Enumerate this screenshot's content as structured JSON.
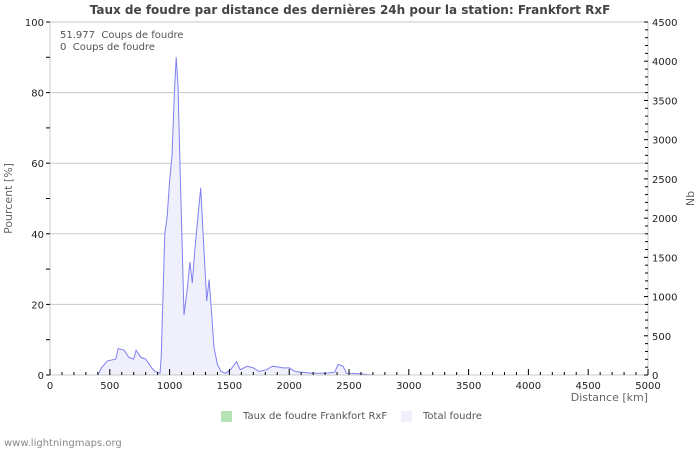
{
  "header": {
    "title": "Taux de foudre par distance des dernières 24h pour la station: Frankfort RxF"
  },
  "annotations": [
    {
      "value": "51.977",
      "label": "Coups de foudre"
    },
    {
      "value": "0",
      "label": "Coups de foudre"
    }
  ],
  "legend": [
    {
      "label": "Taux de foudre Frankfort RxF",
      "color": "#b5e3b5"
    },
    {
      "label": "Total foudre",
      "color": "#f0f0fc"
    }
  ],
  "footer": {
    "text": "www.lightningmaps.org"
  },
  "colors": {
    "line": "#8080f0",
    "fill": "#f0f0fc",
    "grid": "#c8c8c8",
    "axis": "#c8c8c8"
  },
  "chart_data": {
    "type": "area",
    "title": "Taux de foudre par distance des dernières 24h pour la station: Frankfort RxF",
    "xlabel": "Distance   [km]",
    "ylabel": "Pourcent   [%]",
    "y2label": "Nb",
    "xlim": [
      0,
      5000
    ],
    "ylim": [
      0,
      100
    ],
    "y2lim": [
      0,
      4500
    ],
    "xticks": [
      0,
      500,
      1000,
      1500,
      2000,
      2500,
      3000,
      3500,
      4000,
      4500,
      5000
    ],
    "yticks": [
      0,
      20,
      40,
      60,
      80,
      100
    ],
    "y2ticks": [
      0,
      500,
      1000,
      1500,
      2000,
      2500,
      3000,
      3500,
      4000,
      4500
    ],
    "grid": true,
    "legend_position": "bottom",
    "series": [
      {
        "name": "Total foudre",
        "x": [
          0,
          400,
          430,
          480,
          550,
          570,
          620,
          660,
          700,
          720,
          760,
          800,
          850,
          880,
          920,
          930,
          960,
          980,
          1000,
          1020,
          1040,
          1055,
          1070,
          1090,
          1110,
          1120,
          1150,
          1170,
          1190,
          1210,
          1240,
          1260,
          1280,
          1310,
          1330,
          1350,
          1370,
          1400,
          1430,
          1470,
          1510,
          1560,
          1590,
          1650,
          1700,
          1750,
          1810,
          1860,
          1900,
          1950,
          2000,
          2050,
          2100,
          2200,
          2300,
          2380,
          2410,
          2450,
          2480,
          2600,
          2700,
          5000
        ],
        "values": [
          0,
          0,
          2,
          4,
          4.5,
          7.5,
          7,
          5,
          4.5,
          7,
          5,
          4.5,
          2,
          1,
          0.5,
          5,
          40,
          45,
          55,
          62,
          80,
          90,
          82,
          55,
          30,
          17,
          25,
          32,
          26,
          35,
          46,
          53,
          40,
          21,
          27,
          18,
          8,
          3,
          1,
          0.5,
          1.5,
          3.8,
          1.5,
          2.5,
          2,
          1,
          1.5,
          2.5,
          2.3,
          2,
          2,
          1,
          0.8,
          0.5,
          0.5,
          0.8,
          3,
          2.5,
          0.5,
          0.3,
          0,
          0
        ]
      },
      {
        "name": "Taux de foudre Frankfort RxF",
        "x": [
          0,
          5000
        ],
        "values": [
          0,
          0
        ]
      }
    ]
  }
}
